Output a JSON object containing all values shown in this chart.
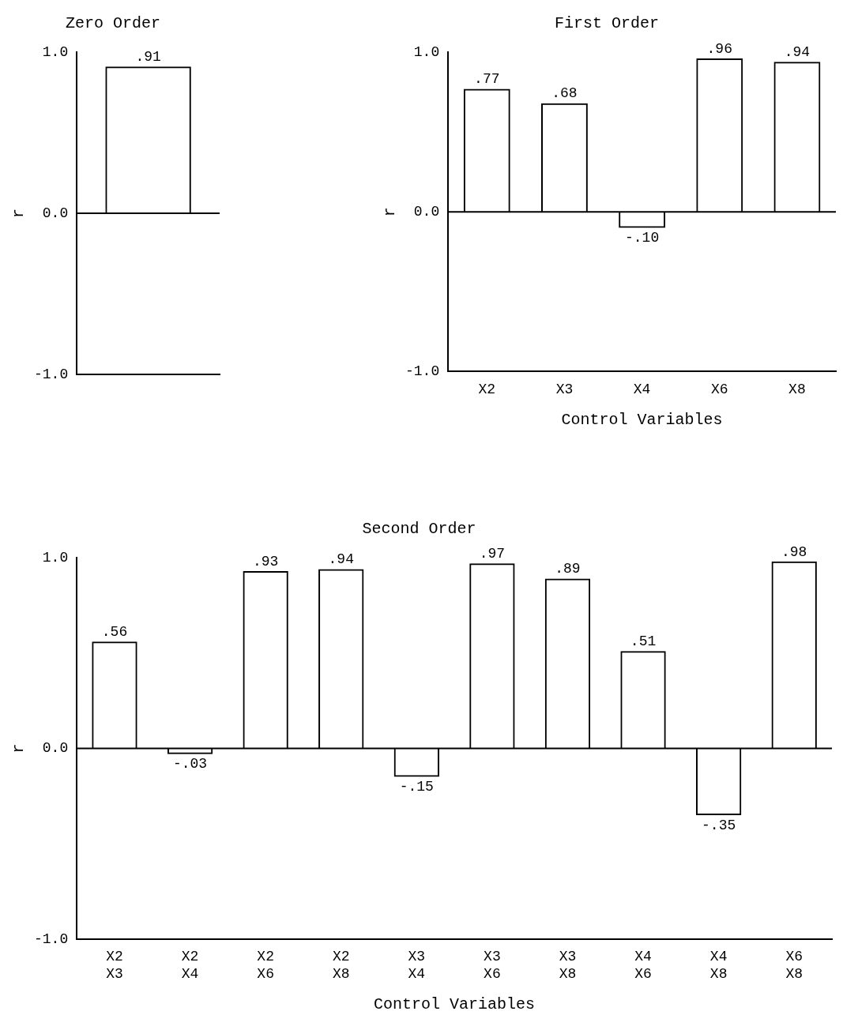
{
  "chart_data": [
    {
      "type": "bar",
      "title": "Zero Order",
      "ylabel": "r",
      "categories": [
        null
      ],
      "values": [
        0.91
      ],
      "value_labels": [
        ".91"
      ],
      "color": "#000000",
      "ref_lines": [
        {
          "axis": "y",
          "value": 0,
          "color": "#000000"
        }
      ],
      "ylim": [
        -1,
        1
      ],
      "yticks": [
        {
          "value": -1,
          "label": "-1.0"
        },
        {
          "value": 0,
          "label": "0.0"
        },
        {
          "value": 1,
          "label": "1.0"
        }
      ],
      "grid": false,
      "legend": false,
      "tick_labels": "y"
    },
    {
      "type": "bar",
      "title": "First Order",
      "ylabel": "r",
      "xlabel": "Control Variables",
      "categories": [
        "X2",
        "X3",
        "X4",
        "X6",
        "X8"
      ],
      "values": [
        0.77,
        0.68,
        -0.1,
        0.96,
        0.94
      ],
      "value_labels": [
        ".77",
        ".68",
        "-.10",
        ".96",
        ".94"
      ],
      "color": "#000000",
      "ref_lines": [
        {
          "axis": "y",
          "value": 0,
          "color": "#000000"
        }
      ],
      "ylim": [
        -1,
        1
      ],
      "yticks": [
        {
          "value": -1,
          "label": "-1.0"
        },
        {
          "value": 0,
          "label": "0.0"
        },
        {
          "value": 1,
          "label": "1.0"
        }
      ],
      "grid": false,
      "legend": false
    },
    {
      "type": "bar",
      "title": "Second Order",
      "ylabel": "r",
      "xlabel": "Control Variables",
      "categories": [
        "X2\nX3",
        "X2\nX4",
        "X2\nX6",
        "X2\nX8",
        "X3\nX4",
        "X3\nX6",
        "X3\nX8",
        "X4\nX6",
        "X4\nX8",
        "X6\nX8"
      ],
      "values": [
        0.56,
        -0.03,
        0.93,
        0.94,
        -0.15,
        0.97,
        0.89,
        0.51,
        -0.35,
        0.98
      ],
      "value_labels": [
        ".56",
        "-.03",
        ".93",
        ".94",
        "-.15",
        ".97",
        ".89",
        ".51",
        "-.35",
        ".98"
      ],
      "color": "#000000",
      "ref_lines": [
        {
          "axis": "y",
          "value": 0,
          "color": "#000000"
        }
      ],
      "ylim": [
        -1,
        1
      ],
      "yticks": [
        {
          "value": -1,
          "label": "-1.0"
        },
        {
          "value": 0,
          "label": "0.0"
        },
        {
          "value": 1,
          "label": "1.0"
        }
      ],
      "grid": false,
      "legend": false
    }
  ]
}
